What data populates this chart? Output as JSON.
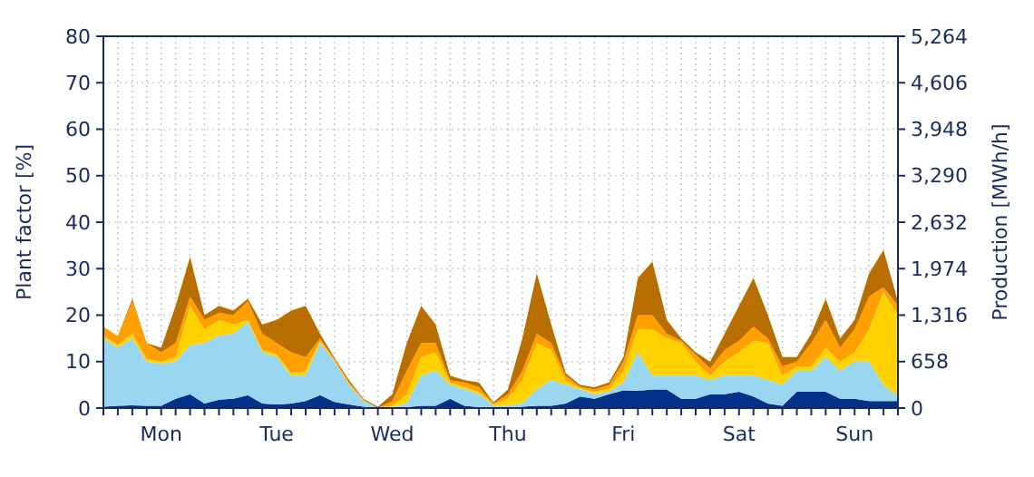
{
  "chart_data": {
    "type": "area",
    "stacked": true,
    "ylabel": "Plant factor [%]",
    "y2label": "Production [MWh/h]",
    "categories": [
      null,
      null,
      null,
      null,
      "Mon",
      null,
      null,
      null,
      null,
      null,
      null,
      null,
      "Tue",
      null,
      null,
      null,
      null,
      null,
      null,
      null,
      "Wed",
      null,
      null,
      null,
      null,
      null,
      null,
      null,
      "Thu",
      null,
      null,
      null,
      null,
      null,
      null,
      null,
      "Fri",
      null,
      null,
      null,
      null,
      null,
      null,
      null,
      "Sat",
      null,
      null,
      null,
      null,
      null,
      null,
      null,
      "Sun",
      null,
      null,
      null
    ],
    "ylim": [
      0,
      80
    ],
    "yticks": [
      0,
      10,
      20,
      30,
      40,
      50,
      60,
      70,
      80
    ],
    "y2lim": [
      0,
      5264
    ],
    "y2ticks": [
      {
        "value": 0,
        "label": "0"
      },
      {
        "value": 658,
        "label": "658"
      },
      {
        "value": 1316,
        "label": "1,316"
      },
      {
        "value": 1974,
        "label": "1,974"
      },
      {
        "value": 2632,
        "label": "2,632"
      },
      {
        "value": 3290,
        "label": "3,290"
      },
      {
        "value": 3948,
        "label": "3,948"
      },
      {
        "value": 4606,
        "label": "4,606"
      },
      {
        "value": 5264,
        "label": "5,264"
      }
    ],
    "grid": true,
    "series": [
      {
        "color": "#003087",
        "values": [
          0.3,
          0.5,
          0.6,
          0.5,
          0.5,
          2,
          3,
          1,
          1.8,
          2,
          2.8,
          1,
          0.8,
          1,
          1.5,
          2.8,
          1.3,
          0.8,
          0.3,
          0,
          0,
          0.2,
          0.5,
          0.5,
          2,
          0.5,
          0.2,
          0,
          0,
          0.3,
          0.5,
          0.5,
          1,
          2.5,
          2,
          3,
          3.8,
          3.7,
          4,
          4,
          2,
          2,
          3,
          3,
          3.5,
          2.5,
          1,
          0.5,
          3.5,
          3.5,
          3.5,
          2,
          2,
          1.5,
          1.5,
          1.5
        ]
      },
      {
        "color": "#99d6f0",
        "values": [
          14.7,
          12.5,
          14.4,
          9.5,
          9,
          8,
          10.5,
          13,
          13.7,
          14,
          15.7,
          11,
          10.2,
          6,
          5.5,
          11.2,
          8.7,
          4.2,
          1.2,
          0,
          0.2,
          0.8,
          6.5,
          7.5,
          3,
          3.5,
          2.8,
          0.5,
          0.5,
          0.7,
          3.5,
          5.5,
          4,
          1.5,
          1,
          0.5,
          1.7,
          8.3,
          3,
          3,
          5,
          5,
          3,
          4,
          3.5,
          4.5,
          5,
          4.5,
          4.5,
          4.5,
          7.5,
          6,
          8,
          8.5,
          3.5,
          1
        ]
      },
      {
        "color": "#ffd200",
        "values": [
          0.5,
          0.5,
          1,
          0.5,
          0.5,
          1,
          8.5,
          3,
          3.5,
          2,
          0.5,
          0.5,
          0.5,
          0.5,
          1,
          0.5,
          0.2,
          0.2,
          0.1,
          0,
          0.3,
          2,
          4,
          4,
          0.5,
          0.5,
          0.5,
          0.3,
          1.5,
          5,
          10,
          6.5,
          1,
          0.3,
          0.5,
          0.7,
          2.5,
          5,
          10,
          8,
          7,
          3,
          1,
          3,
          5,
          7.5,
          8,
          2,
          1,
          1,
          2,
          2,
          2,
          7,
          20,
          17.5
        ]
      },
      {
        "color": "#ffa000",
        "values": [
          2,
          2,
          7,
          3.5,
          2,
          3,
          2,
          2,
          1.5,
          2,
          4,
          3.5,
          2.5,
          4.5,
          3,
          0.5,
          0.3,
          0.3,
          0.2,
          0,
          1,
          5,
          3,
          2,
          0.5,
          1,
          1,
          0.2,
          1,
          2,
          2,
          1.5,
          1,
          0.3,
          0.5,
          0.8,
          2,
          3,
          3,
          1,
          0.5,
          1.5,
          1.5,
          2.5,
          2.5,
          3,
          1,
          2,
          1,
          5,
          6,
          3,
          5,
          7,
          1,
          2
        ]
      },
      {
        "color": "#b86e00",
        "values": [
          0,
          0,
          0.5,
          0,
          1,
          8,
          8.5,
          1,
          1.5,
          1,
          0.5,
          2,
          5,
          9,
          11,
          1,
          0.3,
          0.5,
          0.2,
          0.3,
          1.5,
          6,
          8,
          4,
          1,
          0.5,
          1,
          0.2,
          1,
          7,
          13,
          4,
          0.5,
          0.4,
          0.5,
          0.5,
          1,
          8,
          11.5,
          3,
          0.5,
          0.5,
          1.5,
          3.5,
          7.5,
          10.5,
          5,
          2,
          1,
          2,
          4.5,
          2,
          2,
          5,
          8,
          1
        ]
      }
    ]
  }
}
